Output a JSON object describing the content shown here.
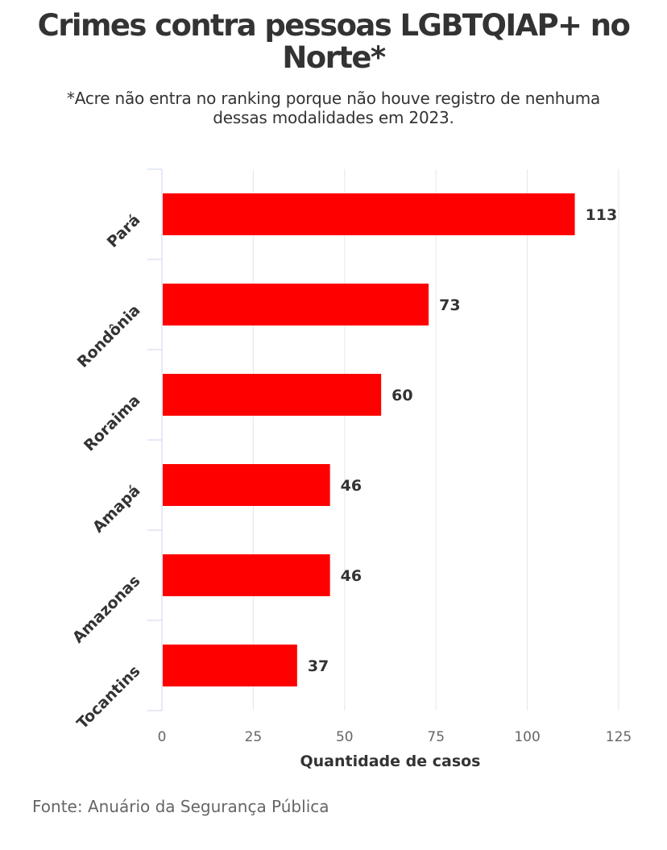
{
  "title": "Crimes contra pessoas LGBTQIAP+ no Norte*",
  "subtitle": "*Acre não entra no ranking porque não houve registro de nenhuma dessas modalidades em 2023.",
  "source": "Fonte: Anuário da Segurança Pública",
  "chart_data": {
    "type": "bar",
    "orientation": "horizontal",
    "categories": [
      "Pará",
      "Rondônia",
      "Roraima",
      "Amapá",
      "Amazonas",
      "Tocantins"
    ],
    "values": [
      113,
      73,
      60,
      46,
      46,
      37
    ],
    "xlabel": "Quantidade de casos",
    "ylabel": "",
    "xlim": [
      0,
      125
    ],
    "xticks": [
      0,
      25,
      50,
      75,
      100,
      125
    ],
    "grid": "vertical",
    "bar_color": "#ff0000",
    "data_labels": true
  }
}
